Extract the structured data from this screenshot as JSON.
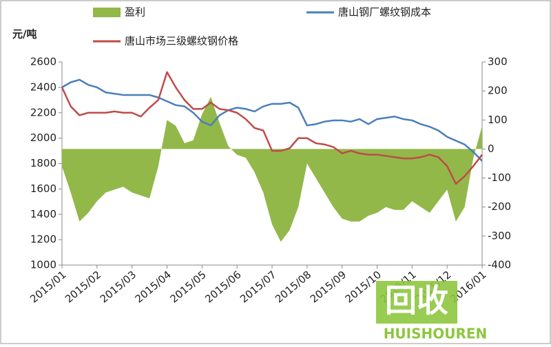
{
  "chart_data": {
    "type": "combo",
    "y_unit": "元/吨",
    "categories": [
      "2015/01",
      null,
      null,
      null,
      "2015/02",
      null,
      null,
      null,
      "2015/03",
      null,
      null,
      null,
      "2015/04",
      null,
      null,
      null,
      "2015/05",
      null,
      null,
      null,
      "2015/06",
      null,
      null,
      null,
      "2015/07",
      null,
      null,
      null,
      "2015/08",
      null,
      null,
      null,
      "2015/09",
      null,
      null,
      null,
      "2015/10",
      null,
      null,
      null,
      "2015/11",
      null,
      null,
      null,
      "2015/12",
      null,
      null,
      null,
      "2016/01"
    ],
    "series": [
      {
        "name": "盈利",
        "type": "area",
        "axis": "y2",
        "color": "#92b84a",
        "values": [
          -60,
          -150,
          -250,
          -220,
          -180,
          -150,
          -140,
          -130,
          -150,
          -160,
          -170,
          -60,
          100,
          80,
          20,
          30,
          120,
          180,
          90,
          10,
          -20,
          -30,
          -80,
          -150,
          -260,
          -320,
          -280,
          -200,
          -50,
          -100,
          -150,
          -200,
          -240,
          -250,
          -250,
          -230,
          -220,
          -200,
          -210,
          -210,
          -180,
          -200,
          -220,
          -180,
          -140,
          -250,
          -200,
          -30,
          80
        ]
      },
      {
        "name": "唐山钢厂螺纹钢成本",
        "type": "line",
        "color": "#4a7ebb",
        "values": [
          2400,
          2440,
          2460,
          2420,
          2400,
          2360,
          2350,
          2340,
          2340,
          2340,
          2340,
          2320,
          2290,
          2260,
          2250,
          2200,
          2130,
          2100,
          2180,
          2220,
          2240,
          2230,
          2210,
          2250,
          2270,
          2270,
          2280,
          2240,
          2100,
          2110,
          2130,
          2140,
          2140,
          2130,
          2150,
          2110,
          2150,
          2160,
          2170,
          2150,
          2140,
          2110,
          2090,
          2060,
          2010,
          1980,
          1950,
          1890,
          1820
        ]
      },
      {
        "name": "唐山市场三级螺纹钢价格",
        "type": "line",
        "color": "#be4b48",
        "values": [
          2400,
          2250,
          2180,
          2200,
          2200,
          2200,
          2210,
          2200,
          2200,
          2170,
          2240,
          2300,
          2520,
          2400,
          2300,
          2230,
          2230,
          2280,
          2230,
          2220,
          2200,
          2150,
          2080,
          2060,
          1900,
          1900,
          1920,
          2000,
          2000,
          1960,
          1950,
          1930,
          1880,
          1900,
          1880,
          1870,
          1870,
          1860,
          1850,
          1840,
          1840,
          1850,
          1870,
          1850,
          1780,
          1640,
          1700,
          1780,
          1870
        ]
      }
    ],
    "ylim": [
      1000,
      2600
    ],
    "yticks": [
      1000,
      1200,
      1400,
      1600,
      1800,
      2000,
      2200,
      2400,
      2600
    ],
    "y2lim": [
      -400,
      300
    ],
    "y2ticks": [
      -400,
      -300,
      -200,
      -100,
      0,
      100,
      200,
      300
    ]
  },
  "watermark": {
    "logo": "回收",
    "text": "HUISHOUREN"
  }
}
